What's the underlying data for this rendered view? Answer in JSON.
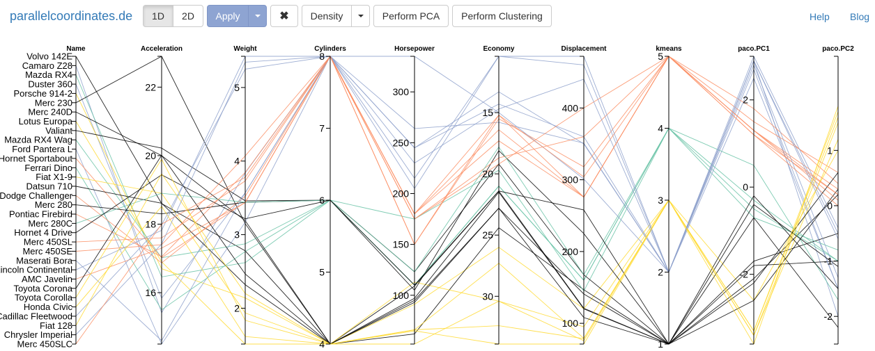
{
  "brand": "parallelcoordinates.de",
  "toolbar": {
    "view_1d": "1D",
    "view_2d": "2D",
    "apply": "Apply",
    "clear_icon": "✖",
    "density": "Density",
    "perform_pca": "Perform PCA",
    "perform_clustering": "Perform Clustering"
  },
  "nav": {
    "help": "Help",
    "blog": "Blog"
  },
  "colors": {
    "cluster1": "#000000",
    "cluster2": "#8da0cb",
    "cluster3": "#ffd92f",
    "cluster4": "#66c2a5",
    "cluster5": "#fc8d62"
  },
  "chart_data": {
    "type": "parallel-coordinates",
    "axes": [
      {
        "name": "Name",
        "type": "categorical"
      },
      {
        "name": "Acceleration",
        "min": 14.5,
        "max": 22.9,
        "reverse": false,
        "ticks": [
          16,
          18,
          20,
          22
        ]
      },
      {
        "name": "Weight",
        "min": 1.513,
        "max": 5.424,
        "reverse": false,
        "ticks": [
          2,
          3,
          4,
          5
        ]
      },
      {
        "name": "Cylinders",
        "min": 4,
        "max": 8,
        "reverse": false,
        "ticks": [
          4,
          5,
          6,
          7,
          8
        ]
      },
      {
        "name": "Horsepower",
        "min": 52,
        "max": 335,
        "reverse": false,
        "ticks": [
          100,
          150,
          200,
          250,
          300
        ]
      },
      {
        "name": "Economy",
        "min": 10.4,
        "max": 33.9,
        "reverse": true,
        "ticks": [
          15,
          20,
          25,
          30
        ]
      },
      {
        "name": "Displacement",
        "min": 71.1,
        "max": 472,
        "reverse": false,
        "ticks": [
          100,
          200,
          300,
          400
        ]
      },
      {
        "name": "kmeans",
        "min": 1,
        "max": 5,
        "reverse": false,
        "ticks": [
          1,
          2,
          3,
          4,
          5
        ]
      },
      {
        "name": "paco.PC1",
        "min": -3.6,
        "max": 3.0,
        "reverse": false,
        "ticks": [
          -2,
          0,
          2
        ]
      },
      {
        "name": "paco.PC2",
        "min": -2.5,
        "max": 2.7,
        "reverse": false,
        "ticks": [
          -2,
          -1,
          0,
          1
        ]
      }
    ],
    "rows": [
      [
        "Volvo 142E",
        18.6,
        2.78,
        4,
        109,
        21.4,
        121,
        1,
        -2.1,
        0.2
      ],
      [
        "Camaro Z28",
        15.41,
        3.84,
        8,
        245,
        13.3,
        350,
        2,
        2.9,
        -2.0
      ],
      [
        "Mazda RX4",
        16.46,
        2.62,
        6,
        110,
        21.0,
        160,
        4,
        -0.5,
        -1.0
      ],
      [
        "Duster 360",
        15.84,
        3.57,
        8,
        245,
        14.3,
        360,
        2,
        2.7,
        -1.5
      ],
      [
        "Porsche 914-2",
        16.7,
        2.14,
        4,
        91,
        26.0,
        120.3,
        3,
        -2.6,
        1.0
      ],
      [
        "Merc 230",
        22.9,
        3.15,
        4,
        95,
        22.8,
        140.8,
        1,
        -1.8,
        -1.0
      ],
      [
        "Merc 240D",
        20.0,
        3.19,
        4,
        62,
        24.4,
        146.7,
        1,
        -1.7,
        -0.5
      ],
      [
        "Lotus Europa",
        16.9,
        1.513,
        4,
        113,
        30.4,
        95.1,
        3,
        -3.3,
        1.6
      ],
      [
        "Valiant",
        20.22,
        3.46,
        6,
        105,
        18.1,
        225,
        1,
        -0.7,
        -2.2
      ],
      [
        "Mazda RX4 Wag",
        17.02,
        2.875,
        6,
        110,
        21.0,
        160,
        4,
        -0.7,
        -0.8
      ],
      [
        "Ford Pantera L",
        14.5,
        3.17,
        8,
        264,
        15.8,
        351,
        2,
        2.5,
        -1.5
      ],
      [
        "Hornet Sportabout",
        17.02,
        3.44,
        8,
        175,
        18.7,
        360,
        5,
        1.5,
        0.6
      ],
      [
        "Ferrari Dino",
        15.5,
        2.77,
        6,
        175,
        19.7,
        145,
        4,
        0.5,
        -1.7
      ],
      [
        "Fiat X1-9",
        18.9,
        1.935,
        4,
        66,
        27.3,
        79,
        3,
        -3.4,
        1.2
      ],
      [
        "Datsun 710",
        18.61,
        2.32,
        4,
        93,
        22.8,
        108,
        1,
        -2.6,
        0.3
      ],
      [
        "Dodge Challenger",
        16.87,
        3.52,
        8,
        150,
        15.5,
        318,
        5,
        1.3,
        0.1
      ],
      [
        "Merc 280",
        18.3,
        3.44,
        6,
        123,
        19.2,
        167.6,
        1,
        -0.4,
        -1.1
      ],
      [
        "Pontiac Firebird",
        17.05,
        3.845,
        8,
        175,
        19.2,
        400,
        5,
        1.8,
        0.4
      ],
      [
        "Merc 280C",
        18.9,
        3.44,
        6,
        123,
        17.8,
        167.6,
        4,
        -0.3,
        -1.0
      ],
      [
        "Hornet 4 Drive",
        19.44,
        3.215,
        6,
        110,
        21.4,
        258,
        1,
        -0.2,
        -1.5
      ],
      [
        "Merc 450SL",
        17.6,
        3.73,
        8,
        180,
        17.3,
        275.8,
        5,
        1.2,
        0.2
      ],
      [
        "Merc 450SE",
        17.4,
        4.07,
        8,
        180,
        16.4,
        275.8,
        5,
        1.3,
        0.3
      ],
      [
        "Maserati Bora",
        14.6,
        3.57,
        8,
        335,
        15.0,
        301,
        2,
        2.8,
        -1.3
      ],
      [
        "Lincoln Continental",
        17.82,
        5.424,
        8,
        215,
        10.4,
        460,
        2,
        2.9,
        -0.5
      ],
      [
        "AMC Javelin",
        17.3,
        3.435,
        8,
        150,
        15.2,
        304,
        5,
        1.2,
        0.0
      ],
      [
        "Toyota Corona",
        20.01,
        2.465,
        4,
        97,
        21.5,
        120.1,
        1,
        -2.2,
        0.6
      ],
      [
        "Toyota Corolla",
        19.9,
        1.835,
        4,
        65,
        33.9,
        71.1,
        3,
        -3.6,
        1.8
      ],
      [
        "Honda Civic",
        18.52,
        1.615,
        4,
        52,
        30.4,
        75.7,
        3,
        -3.3,
        1.7
      ],
      [
        "Cadillac Fleetwood",
        17.98,
        5.25,
        8,
        205,
        10.4,
        472,
        2,
        3.0,
        -0.4
      ],
      [
        "Fiat 128",
        19.47,
        2.2,
        4,
        66,
        32.4,
        78.7,
        3,
        -3.4,
        1.5
      ],
      [
        "Chrysler Imperial",
        17.42,
        5.345,
        8,
        230,
        14.7,
        440,
        2,
        2.9,
        -0.6
      ],
      [
        "Merc 450SLC",
        18.0,
        3.78,
        8,
        180,
        15.2,
        275.8,
        5,
        1.3,
        0.2
      ]
    ]
  }
}
